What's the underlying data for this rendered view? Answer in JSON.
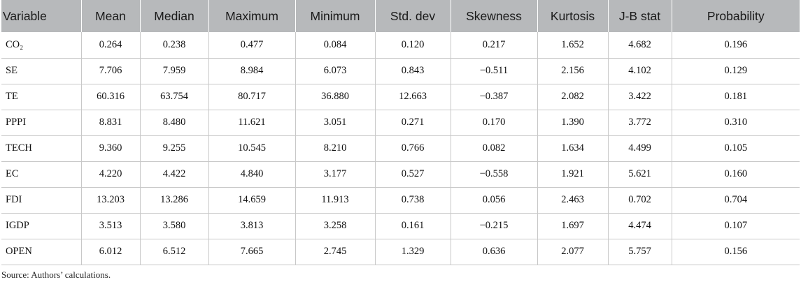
{
  "table": {
    "headers": [
      "Variable",
      "Mean",
      "Median",
      "Maximum",
      "Minimum",
      "Std. dev",
      "Skewness",
      "Kurtosis",
      "J-B stat",
      "Probability"
    ],
    "rows": [
      [
        "CO₂",
        "0.264",
        "0.238",
        "0.477",
        "0.084",
        "0.120",
        "0.217",
        "1.652",
        "4.682",
        "0.196"
      ],
      [
        "SE",
        "7.706",
        "7.959",
        "8.984",
        "6.073",
        "0.843",
        "−0.511",
        "2.156",
        "4.102",
        "0.129"
      ],
      [
        "TE",
        "60.316",
        "63.754",
        "80.717",
        "36.880",
        "12.663",
        "−0.387",
        "2.082",
        "3.422",
        "0.181"
      ],
      [
        "PPPI",
        "8.831",
        "8.480",
        "11.621",
        "3.051",
        "0.271",
        "0.170",
        "1.390",
        "3.772",
        "0.310"
      ],
      [
        "TECH",
        "9.360",
        "9.255",
        "10.545",
        "8.210",
        "0.766",
        "0.082",
        "1.634",
        "4.499",
        "0.105"
      ],
      [
        "EC",
        "4.220",
        "4.422",
        "4.840",
        "3.177",
        "0.527",
        "−0.558",
        "1.921",
        "5.621",
        "0.160"
      ],
      [
        "FDI",
        "13.203",
        "13.286",
        "14.659",
        "11.913",
        "0.738",
        "0.056",
        "2.463",
        "0.702",
        "0.704"
      ],
      [
        "IGDP",
        "3.513",
        "3.580",
        "3.813",
        "3.258",
        "0.161",
        "−0.215",
        "1.697",
        "4.474",
        "0.107"
      ],
      [
        "OPEN",
        "6.012",
        "6.512",
        "7.665",
        "2.745",
        "1.329",
        "0.636",
        "2.077",
        "5.757",
        "0.156"
      ]
    ]
  },
  "source_note": "Source: Authors’ calculations."
}
